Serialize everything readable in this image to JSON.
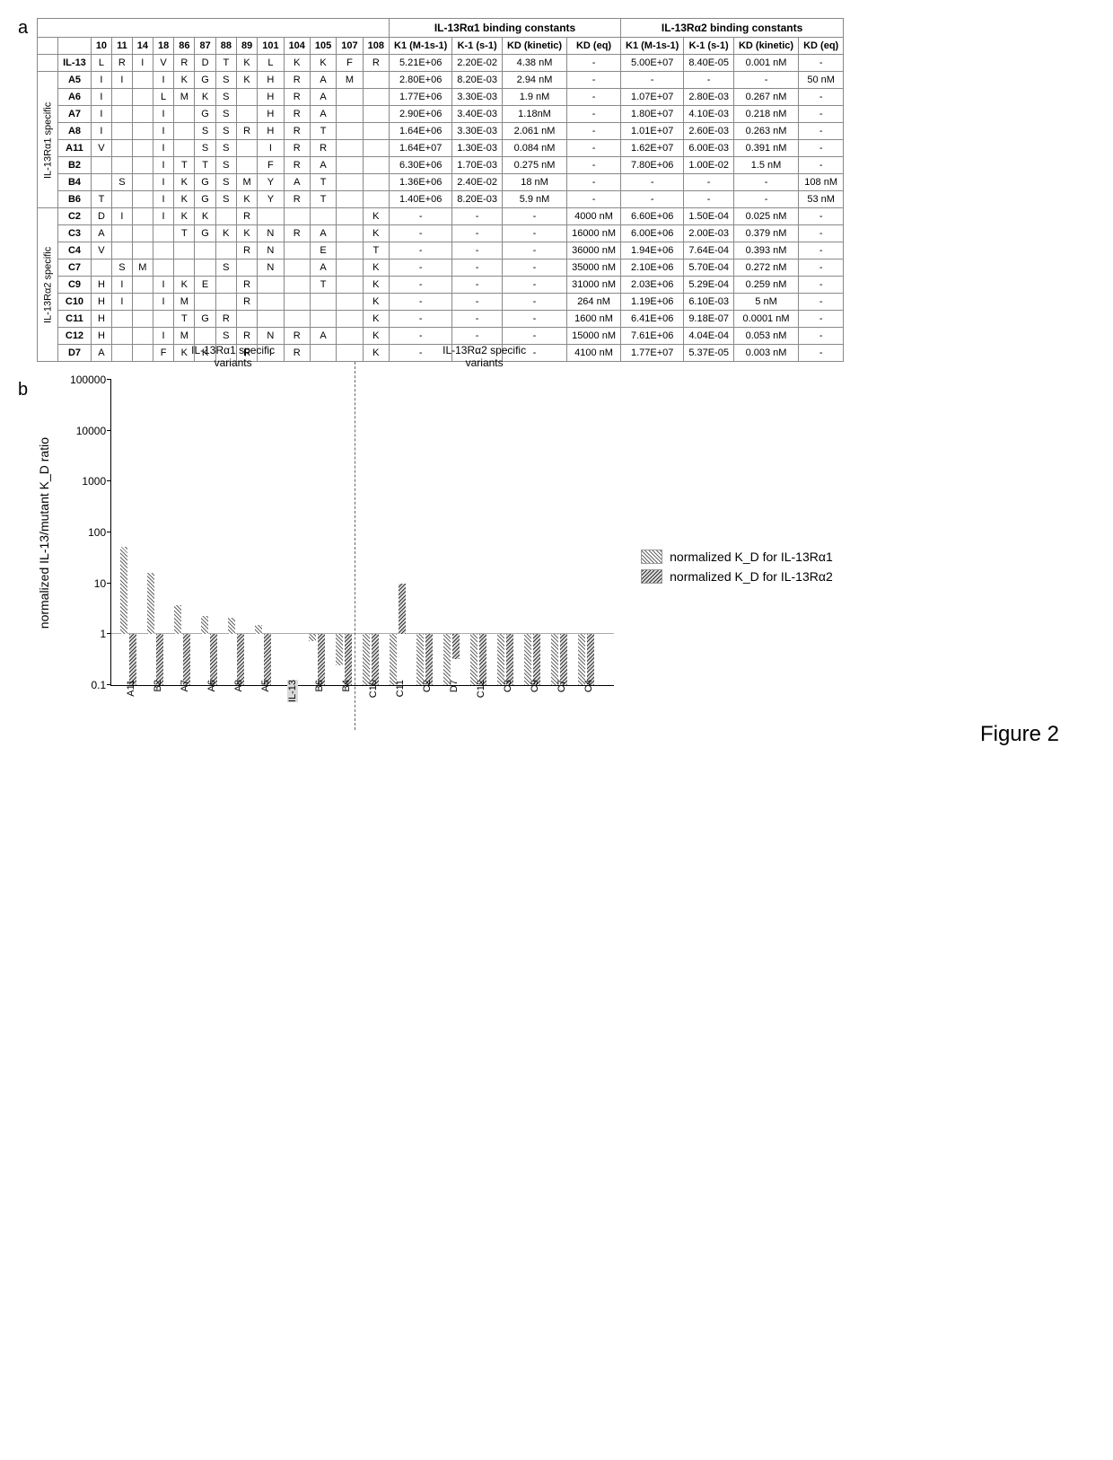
{
  "figure_label": "Figure 2",
  "panel_a": {
    "label": "a",
    "super_headers": {
      "left": "IL-13Rα1 binding constants",
      "right": "IL-13Rα2 binding constants"
    },
    "position_cols": [
      "10",
      "11",
      "14",
      "18",
      "86",
      "87",
      "88",
      "89",
      "101",
      "104",
      "105",
      "107",
      "108"
    ],
    "kin_cols_a1": [
      "K1 (M-1s-1)",
      "K-1 (s-1)",
      "KD (kinetic)",
      "KD (eq)"
    ],
    "kin_cols_a2": [
      "K1 (M-1s-1)",
      "K-1 (s-1)",
      "KD (kinetic)",
      "KD (eq)"
    ],
    "group1_label": "IL-13Rα1 specific",
    "group2_label": "IL-13Rα2 specific",
    "wt": {
      "name": "IL-13",
      "pos": [
        "L",
        "R",
        "I",
        "V",
        "R",
        "D",
        "T",
        "K",
        "L",
        "K",
        "K",
        "F",
        "R"
      ],
      "a1": [
        "5.21E+06",
        "2.20E-02",
        "4.38 nM",
        "-"
      ],
      "a2": [
        "5.00E+07",
        "8.40E-05",
        "0.001 nM",
        "-"
      ]
    },
    "group1": [
      {
        "name": "A5",
        "pos": [
          "I",
          "I",
          "",
          "I",
          "K",
          "G",
          "S",
          "K",
          "H",
          "R",
          "A",
          "M",
          ""
        ],
        "a1": [
          "2.80E+06",
          "8.20E-03",
          "2.94 nM",
          "-"
        ],
        "a2": [
          "-",
          "-",
          "-",
          "50 nM"
        ]
      },
      {
        "name": "A6",
        "pos": [
          "I",
          "",
          "",
          "L",
          "M",
          "K",
          "S",
          "",
          "H",
          "R",
          "A",
          "",
          ""
        ],
        "a1": [
          "1.77E+06",
          "3.30E-03",
          "1.9 nM",
          "-"
        ],
        "a2": [
          "1.07E+07",
          "2.80E-03",
          "0.267 nM",
          "-"
        ]
      },
      {
        "name": "A7",
        "pos": [
          "I",
          "",
          "",
          "I",
          "",
          "G",
          "S",
          "",
          "H",
          "R",
          "A",
          "",
          ""
        ],
        "a1": [
          "2.90E+06",
          "3.40E-03",
          "1.18nM",
          "-"
        ],
        "a2": [
          "1.80E+07",
          "4.10E-03",
          "0.218 nM",
          "-"
        ]
      },
      {
        "name": "A8",
        "pos": [
          "I",
          "",
          "",
          "I",
          "",
          "S",
          "S",
          "R",
          "H",
          "R",
          "T",
          "",
          ""
        ],
        "a1": [
          "1.64E+06",
          "3.30E-03",
          "2.061 nM",
          "-"
        ],
        "a2": [
          "1.01E+07",
          "2.60E-03",
          "0.263 nM",
          "-"
        ]
      },
      {
        "name": "A11",
        "pos": [
          "V",
          "",
          "",
          "I",
          "",
          "S",
          "S",
          "",
          "I",
          "R",
          "R",
          "",
          ""
        ],
        "a1": [
          "1.64E+07",
          "1.30E-03",
          "0.084 nM",
          "-"
        ],
        "a2": [
          "1.62E+07",
          "6.00E-03",
          "0.391 nM",
          "-"
        ]
      },
      {
        "name": "B2",
        "pos": [
          "",
          "",
          "",
          "I",
          "T",
          "T",
          "S",
          "",
          "F",
          "R",
          "A",
          "",
          ""
        ],
        "a1": [
          "6.30E+06",
          "1.70E-03",
          "0.275 nM",
          "-"
        ],
        "a2": [
          "7.80E+06",
          "1.00E-02",
          "1.5 nM",
          "-"
        ]
      },
      {
        "name": "B4",
        "pos": [
          "",
          "S",
          "",
          "I",
          "K",
          "G",
          "S",
          "M",
          "Y",
          "A",
          "T",
          "",
          ""
        ],
        "a1": [
          "1.36E+06",
          "2.40E-02",
          "18 nM",
          "-"
        ],
        "a2": [
          "-",
          "-",
          "-",
          "108 nM"
        ]
      },
      {
        "name": "B6",
        "pos": [
          "T",
          "",
          "",
          "I",
          "K",
          "G",
          "S",
          "K",
          "Y",
          "R",
          "T",
          "",
          ""
        ],
        "a1": [
          "1.40E+06",
          "8.20E-03",
          "5.9 nM",
          "-"
        ],
        "a2": [
          "-",
          "-",
          "-",
          "53 nM"
        ]
      }
    ],
    "group2": [
      {
        "name": "C2",
        "pos": [
          "D",
          "I",
          "",
          "I",
          "K",
          "K",
          "",
          "R",
          "",
          "",
          "",
          "",
          "K"
        ],
        "a1": [
          "-",
          "-",
          "-",
          "4000 nM"
        ],
        "a2": [
          "6.60E+06",
          "1.50E-04",
          "0.025 nM",
          "-"
        ]
      },
      {
        "name": "C3",
        "pos": [
          "A",
          "",
          "",
          "",
          "T",
          "G",
          "K",
          "K",
          "N",
          "R",
          "A",
          "",
          "K"
        ],
        "a1": [
          "-",
          "-",
          "-",
          "16000 nM"
        ],
        "a2": [
          "6.00E+06",
          "2.00E-03",
          "0.379 nM",
          "-"
        ]
      },
      {
        "name": "C4",
        "pos": [
          "V",
          "",
          "",
          "",
          "",
          "",
          "",
          "R",
          "N",
          "",
          "E",
          "",
          "T"
        ],
        "a1": [
          "-",
          "-",
          "-",
          "36000 nM"
        ],
        "a2": [
          "1.94E+06",
          "7.64E-04",
          "0.393 nM",
          "-"
        ]
      },
      {
        "name": "C7",
        "pos": [
          "",
          "S",
          "M",
          "",
          "",
          "",
          "S",
          "",
          "N",
          "",
          "A",
          "",
          "K"
        ],
        "a1": [
          "-",
          "-",
          "-",
          "35000 nM"
        ],
        "a2": [
          "2.10E+06",
          "5.70E-04",
          "0.272 nM",
          "-"
        ]
      },
      {
        "name": "C9",
        "pos": [
          "H",
          "I",
          "",
          "I",
          "K",
          "E",
          "",
          "R",
          "",
          "",
          "T",
          "",
          "K"
        ],
        "a1": [
          "-",
          "-",
          "-",
          "31000 nM"
        ],
        "a2": [
          "2.03E+06",
          "5.29E-04",
          "0.259 nM",
          "-"
        ]
      },
      {
        "name": "C10",
        "pos": [
          "H",
          "I",
          "",
          "I",
          "M",
          "",
          "",
          "R",
          "",
          "",
          "",
          "",
          "K"
        ],
        "a1": [
          "-",
          "-",
          "-",
          "264 nM"
        ],
        "a2": [
          "1.19E+06",
          "6.10E-03",
          "5 nM",
          "-"
        ]
      },
      {
        "name": "C11",
        "pos": [
          "H",
          "",
          "",
          "",
          "T",
          "G",
          "R",
          "",
          "",
          "",
          "",
          "",
          "K"
        ],
        "a1": [
          "-",
          "-",
          "-",
          "1600 nM"
        ],
        "a2": [
          "6.41E+06",
          "9.18E-07",
          "0.0001 nM",
          "-"
        ]
      },
      {
        "name": "C12",
        "pos": [
          "H",
          "",
          "",
          "I",
          "M",
          "",
          "S",
          "R",
          "N",
          "R",
          "A",
          "",
          "K"
        ],
        "a1": [
          "-",
          "-",
          "-",
          "15000 nM"
        ],
        "a2": [
          "7.61E+06",
          "4.04E-04",
          "0.053 nM",
          "-"
        ]
      },
      {
        "name": "D7",
        "pos": [
          "A",
          "",
          "",
          "F",
          "K",
          "K",
          "",
          "R",
          "I",
          "R",
          "",
          "",
          "K"
        ],
        "a1": [
          "-",
          "-",
          "-",
          "4100 nM"
        ],
        "a2": [
          "1.77E+07",
          "5.37E-05",
          "0.003 nM",
          "-"
        ]
      }
    ]
  },
  "panel_b": {
    "label": "b",
    "ylabel": "normalized IL-13/mutant K_D ratio",
    "yticks": [
      "100000",
      "10000",
      "1000",
      "100",
      "10",
      "1",
      "0.1"
    ],
    "y_log_min": -1,
    "y_log_max": 5,
    "region1_label": "IL-13Rα1 specific variants",
    "region2_label": "IL-13Rα2 specific variants",
    "legend_a1": "normalized K_D for IL-13Rα1",
    "legend_a2": "normalized K_D for IL-13Rα2",
    "bars": [
      {
        "name": "A11",
        "a1": 52,
        "a2": 0.003
      },
      {
        "name": "B2",
        "a1": 16,
        "a2": 0.001
      },
      {
        "name": "A7",
        "a1": 3.7,
        "a2": 0.005
      },
      {
        "name": "A6",
        "a1": 2.3,
        "a2": 0.004
      },
      {
        "name": "A8",
        "a1": 2.1,
        "a2": 0.004
      },
      {
        "name": "A5",
        "a1": 1.5,
        "a2": 2e-05
      },
      {
        "name": "IL-13",
        "a1": 1,
        "a2": 1,
        "highlight": true
      },
      {
        "name": "B6",
        "a1": 0.74,
        "a2": 2e-05
      },
      {
        "name": "B4",
        "a1": 0.24,
        "a2": 1e-05
      },
      {
        "name": "C10",
        "a1": 0.017,
        "a2": 0.0002,
        "divider_before": true
      },
      {
        "name": "C11",
        "a1": 0.003,
        "a2": 10
      },
      {
        "name": "C2",
        "a1": 0.001,
        "a2": 0.04
      },
      {
        "name": "D7",
        "a1": 0.001,
        "a2": 0.33
      },
      {
        "name": "C12",
        "a1": 0.0003,
        "a2": 0.02
      },
      {
        "name": "C3",
        "a1": 0.0003,
        "a2": 0.003
      },
      {
        "name": "C9",
        "a1": 0.0001,
        "a2": 0.004
      },
      {
        "name": "C7",
        "a1": 0.0001,
        "a2": 0.004
      },
      {
        "name": "C4",
        "a1": 0.0001,
        "a2": 0.003
      }
    ]
  }
}
